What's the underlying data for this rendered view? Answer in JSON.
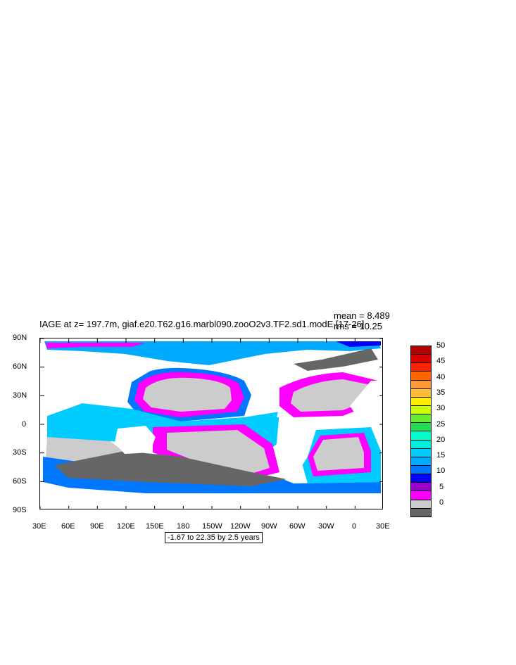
{
  "map": {
    "title": "IAGE at z= 197.7m, giaf.e20.T62.g16.marbl090.zooO2v3.TF2.sd1.modE [17-26]",
    "stats": {
      "mean": "mean = 8.489",
      "rms": "rms = 10.25"
    },
    "lat_labels": [
      "90N",
      "60N",
      "30N",
      "0",
      "30S",
      "60S",
      "90S"
    ],
    "lon_labels": [
      "30E",
      "60E",
      "90E",
      "120E",
      "150E",
      "180",
      "150W",
      "120W",
      "90W",
      "60W",
      "30W",
      "0",
      "30E"
    ],
    "range_text": "-1.67 to 22.35 by 2.5 years",
    "colorbar": {
      "labels": [
        "50",
        "45",
        "40",
        "35",
        "30",
        "25",
        "20",
        "15",
        "10",
        "5",
        "0"
      ],
      "colors": [
        "#b30000",
        "#dd0000",
        "#ff2200",
        "#ff6600",
        "#ff9933",
        "#ffbb33",
        "#ffee00",
        "#ccff00",
        "#66ee33",
        "#22dd55",
        "#00ffcc",
        "#00eedd",
        "#00ccff",
        "#00aaff",
        "#0077ff",
        "#0000ff",
        "#9900cc",
        "#ff00ff",
        "#cccccc",
        "#666666"
      ]
    }
  }
}
